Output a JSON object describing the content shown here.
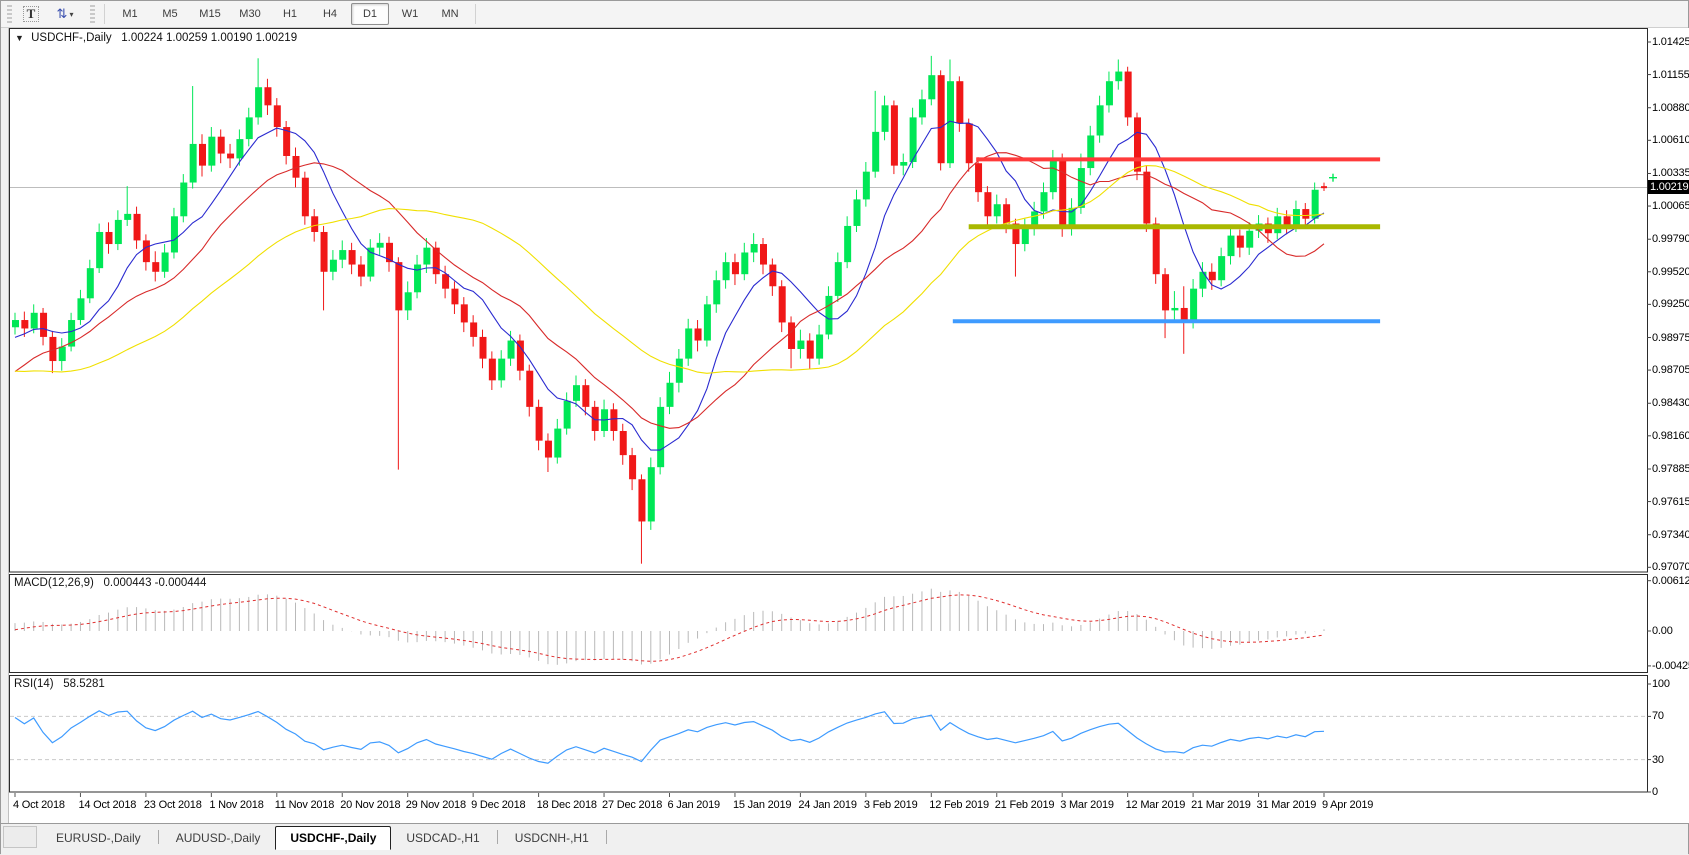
{
  "toolbar": {
    "text_tool_label": "T",
    "arrows_icon": "indicators-dropdown",
    "timeframes": [
      "M1",
      "M5",
      "M15",
      "M30",
      "H1",
      "H4",
      "D1",
      "W1",
      "MN"
    ],
    "active_timeframe": "D1"
  },
  "chart": {
    "title_symbol": "USDCHF-,Daily",
    "title_ohlc": "1.00224 1.00259 1.00190 1.00219",
    "current_price": "1.00219",
    "macd_label": "MACD(12,26,9)",
    "macd_values": "0.000443 -0.000444",
    "rsi_label": "RSI(14)",
    "rsi_value": "58.5281"
  },
  "axes": {
    "price_ticks": [
      "1.01425",
      "1.01155",
      "1.00880",
      "1.00610",
      "1.00335",
      "1.00065",
      "0.99790",
      "0.99520",
      "0.99250",
      "0.98975",
      "0.98705",
      "0.98430",
      "0.98160",
      "0.97885",
      "0.97615",
      "0.97340",
      "0.97070"
    ],
    "macd_ticks": [
      "0.006125",
      "0.00",
      "-0.00425"
    ],
    "rsi_ticks": [
      "100",
      "70",
      "30",
      "0"
    ],
    "dates": [
      "4 Oct 2018",
      "14 Oct 2018",
      "23 Oct 2018",
      "1 Nov 2018",
      "11 Nov 2018",
      "20 Nov 2018",
      "29 Nov 2018",
      "9 Dec 2018",
      "18 Dec 2018",
      "27 Dec 2018",
      "6 Jan 2019",
      "15 Jan 2019",
      "24 Jan 2019",
      "3 Feb 2019",
      "12 Feb 2019",
      "21 Feb 2019",
      "3 Mar 2019",
      "12 Mar 2019",
      "21 Mar 2019",
      "31 Mar 2019",
      "9 Apr 2019"
    ]
  },
  "tabs": {
    "items": [
      "EURUSD-,Daily",
      "AUDUSD-,Daily",
      "USDCHF-,Daily",
      "USDCAD-,H1",
      "USDCNH-,H1"
    ],
    "active": "USDCHF-,Daily"
  },
  "chart_data": {
    "type": "candlestick",
    "symbol": "USDCHF",
    "period": "Daily",
    "title": "USDCHF-,Daily",
    "ylim": [
      0.9707,
      1.01425
    ],
    "current_price": 1.00219,
    "bull_color": "#00E756",
    "bear_color": "#F01818",
    "current_price_line_color": "#BDBDBD",
    "label_every": 7,
    "warmup_closes": [
      0.9915,
      0.991,
      0.9905,
      0.99,
      0.9895,
      0.9898,
      0.989,
      0.9885,
      0.988,
      0.9875,
      0.987,
      0.9865,
      0.986,
      0.985,
      0.984,
      0.983,
      0.982,
      0.9815,
      0.9812,
      0.982,
      0.9828,
      0.9836,
      0.9845,
      0.9852,
      0.986,
      0.9868,
      0.9875,
      0.9882,
      0.9888,
      0.9893,
      0.9897,
      0.99,
      0.9903,
      0.9906
    ],
    "candles": [
      [
        0.9906,
        0.9918,
        0.99,
        0.9912
      ],
      [
        0.9912,
        0.9919,
        0.9898,
        0.9905
      ],
      [
        0.9905,
        0.9925,
        0.9901,
        0.9918
      ],
      [
        0.9918,
        0.9922,
        0.9891,
        0.9898
      ],
      [
        0.9898,
        0.9903,
        0.9868,
        0.9878
      ],
      [
        0.9878,
        0.9897,
        0.987,
        0.989
      ],
      [
        0.989,
        0.9918,
        0.9886,
        0.9912
      ],
      [
        0.9912,
        0.9937,
        0.9908,
        0.993
      ],
      [
        0.993,
        0.9962,
        0.9926,
        0.9955
      ],
      [
        0.9955,
        0.9992,
        0.9951,
        0.9985
      ],
      [
        0.9985,
        0.9993,
        0.9967,
        0.9975
      ],
      [
        0.9975,
        1.0003,
        0.997,
        0.9995
      ],
      [
        0.9995,
        1.0023,
        0.999,
        1.0
      ],
      [
        1.0,
        1.0006,
        0.9971,
        0.9978
      ],
      [
        0.9978,
        0.9983,
        0.9953,
        0.996
      ],
      [
        0.996,
        0.9969,
        0.9944,
        0.9952
      ],
      [
        0.9952,
        0.9975,
        0.9947,
        0.9968
      ],
      [
        0.9968,
        1.0005,
        0.9963,
        0.9998
      ],
      [
        0.9998,
        1.0033,
        0.9993,
        1.0026
      ],
      [
        1.0026,
        1.0106,
        1.0021,
        1.0058
      ],
      [
        1.0058,
        1.0066,
        1.0031,
        1.004
      ],
      [
        1.004,
        1.0072,
        1.0035,
        1.0064
      ],
      [
        1.0064,
        1.007,
        1.0042,
        1.005
      ],
      [
        1.005,
        1.0058,
        1.0038,
        1.0046
      ],
      [
        1.0046,
        1.007,
        1.004,
        1.0062
      ],
      [
        1.0062,
        1.0088,
        1.0056,
        1.008
      ],
      [
        1.008,
        1.0129,
        1.0074,
        1.0105
      ],
      [
        1.0105,
        1.0112,
        1.0082,
        1.009
      ],
      [
        1.009,
        1.0096,
        1.0064,
        1.0072
      ],
      [
        1.0072,
        1.0077,
        1.0041,
        1.0048
      ],
      [
        1.0048,
        1.0055,
        1.0022,
        1.003
      ],
      [
        1.003,
        1.0035,
        0.9991,
        0.9998
      ],
      [
        0.9998,
        1.0004,
        0.9977,
        0.9985
      ],
      [
        0.9985,
        0.999,
        0.992,
        0.9952
      ],
      [
        0.9952,
        0.997,
        0.9945,
        0.9962
      ],
      [
        0.9962,
        0.9978,
        0.9955,
        0.997
      ],
      [
        0.997,
        0.9976,
        0.995,
        0.9958
      ],
      [
        0.9958,
        0.9965,
        0.994,
        0.9948
      ],
      [
        0.9948,
        0.9979,
        0.9944,
        0.9972
      ],
      [
        0.9972,
        0.9984,
        0.9966,
        0.9976
      ],
      [
        0.9976,
        0.9981,
        0.9952,
        0.996
      ],
      [
        0.996,
        0.9964,
        0.9788,
        0.992
      ],
      [
        0.992,
        0.9944,
        0.9912,
        0.9935
      ],
      [
        0.9935,
        0.9966,
        0.993,
        0.9958
      ],
      [
        0.9958,
        0.998,
        0.9951,
        0.9972
      ],
      [
        0.9972,
        0.9977,
        0.9942,
        0.995
      ],
      [
        0.995,
        0.9957,
        0.993,
        0.9938
      ],
      [
        0.9938,
        0.9944,
        0.9917,
        0.9925
      ],
      [
        0.9925,
        0.9931,
        0.9902,
        0.991
      ],
      [
        0.991,
        0.9916,
        0.989,
        0.9898
      ],
      [
        0.9898,
        0.9904,
        0.9872,
        0.988
      ],
      [
        0.988,
        0.9886,
        0.9854,
        0.9862
      ],
      [
        0.9862,
        0.9887,
        0.9856,
        0.988
      ],
      [
        0.988,
        0.9903,
        0.9874,
        0.9895
      ],
      [
        0.9895,
        0.99,
        0.9862,
        0.987
      ],
      [
        0.987,
        0.9875,
        0.9832,
        0.984
      ],
      [
        0.984,
        0.9846,
        0.9804,
        0.9812
      ],
      [
        0.9812,
        0.9818,
        0.9786,
        0.9798
      ],
      [
        0.9798,
        0.983,
        0.9793,
        0.9822
      ],
      [
        0.9822,
        0.9852,
        0.9817,
        0.9845
      ],
      [
        0.9845,
        0.9866,
        0.984,
        0.9858
      ],
      [
        0.9858,
        0.9863,
        0.9833,
        0.984
      ],
      [
        0.984,
        0.9845,
        0.9812,
        0.982
      ],
      [
        0.982,
        0.9846,
        0.9815,
        0.9838
      ],
      [
        0.9838,
        0.9843,
        0.9812,
        0.982
      ],
      [
        0.982,
        0.9826,
        0.9792,
        0.98
      ],
      [
        0.98,
        0.9806,
        0.9771,
        0.978
      ],
      [
        0.978,
        0.9784,
        0.971,
        0.9745
      ],
      [
        0.9745,
        0.9798,
        0.9738,
        0.979
      ],
      [
        0.979,
        0.9848,
        0.9784,
        0.984
      ],
      [
        0.984,
        0.9869,
        0.9834,
        0.986
      ],
      [
        0.986,
        0.9888,
        0.9852,
        0.988
      ],
      [
        0.988,
        0.9913,
        0.9874,
        0.9905
      ],
      [
        0.9905,
        0.9912,
        0.9886,
        0.9895
      ],
      [
        0.9895,
        0.9932,
        0.989,
        0.9925
      ],
      [
        0.9925,
        0.9953,
        0.9918,
        0.9945
      ],
      [
        0.9945,
        0.9968,
        0.9938,
        0.996
      ],
      [
        0.996,
        0.9967,
        0.9941,
        0.995
      ],
      [
        0.995,
        0.9976,
        0.9945,
        0.9968
      ],
      [
        0.9968,
        0.9984,
        0.996,
        0.9975
      ],
      [
        0.9975,
        0.998,
        0.995,
        0.9958
      ],
      [
        0.9958,
        0.9963,
        0.9932,
        0.994
      ],
      [
        0.994,
        0.9945,
        0.9902,
        0.991
      ],
      [
        0.991,
        0.9915,
        0.9872,
        0.9888
      ],
      [
        0.9888,
        0.9904,
        0.988,
        0.9895
      ],
      [
        0.9895,
        0.9901,
        0.9871,
        0.988
      ],
      [
        0.988,
        0.9908,
        0.9875,
        0.99
      ],
      [
        0.99,
        0.994,
        0.9896,
        0.9932
      ],
      [
        0.9932,
        0.9968,
        0.9927,
        0.996
      ],
      [
        0.996,
        0.9998,
        0.9955,
        0.999
      ],
      [
        0.999,
        1.002,
        0.9985,
        1.0012
      ],
      [
        1.0012,
        1.0043,
        1.0006,
        1.0035
      ],
      [
        1.0035,
        1.0102,
        1.003,
        1.0068
      ],
      [
        1.0068,
        1.0098,
        1.0061,
        1.009
      ],
      [
        1.009,
        1.0094,
        1.0033,
        1.004
      ],
      [
        1.004,
        1.005,
        1.0032,
        1.0043
      ],
      [
        1.0043,
        1.0088,
        1.0038,
        1.008
      ],
      [
        1.008,
        1.0103,
        1.0074,
        1.0095
      ],
      [
        1.0095,
        1.0131,
        1.009,
        1.0115
      ],
      [
        1.0115,
        1.0119,
        1.0036,
        1.0042
      ],
      [
        1.0042,
        1.0128,
        1.0038,
        1.011
      ],
      [
        1.011,
        1.0114,
        1.0068,
        1.0075
      ],
      [
        1.0075,
        1.0079,
        1.0035,
        1.0042
      ],
      [
        1.0042,
        1.0047,
        1.001,
        1.0018
      ],
      [
        1.0018,
        1.0023,
        0.999,
        0.9998
      ],
      [
        0.9998,
        1.0016,
        0.9992,
        1.0008
      ],
      [
        1.0008,
        1.0013,
        0.9984,
        0.9992
      ],
      [
        0.9992,
        0.9996,
        0.9948,
        0.9975
      ],
      [
        0.9975,
        0.9996,
        0.9969,
        0.9988
      ],
      [
        0.9988,
        1.001,
        0.9982,
        1.0002
      ],
      [
        1.0002,
        1.0026,
        0.9996,
        1.0018
      ],
      [
        1.0018,
        1.0053,
        1.0012,
        1.0045
      ],
      [
        1.0045,
        1.005,
        0.9981,
        0.9988
      ],
      [
        0.9988,
        1.0013,
        0.9982,
        1.0005
      ],
      [
        1.0005,
        1.005,
        1.0,
        1.0038
      ],
      [
        1.0038,
        1.0073,
        1.0032,
        1.0065
      ],
      [
        1.0065,
        1.0098,
        1.0059,
        1.009
      ],
      [
        1.009,
        1.0118,
        1.0084,
        1.011
      ],
      [
        1.011,
        1.0128,
        1.0103,
        1.0118
      ],
      [
        1.0118,
        1.0122,
        1.0073,
        1.008
      ],
      [
        1.008,
        1.0084,
        1.0028,
        1.0035
      ],
      [
        1.0035,
        1.004,
        0.9985,
        0.9992
      ],
      [
        0.9992,
        0.9997,
        0.9942,
        0.995
      ],
      [
        0.995,
        0.9955,
        0.9897,
        0.992
      ],
      [
        0.992,
        0.9936,
        0.991,
        0.9922
      ],
      [
        0.9922,
        0.994,
        0.9884,
        0.991
      ],
      [
        0.991,
        0.9946,
        0.9905,
        0.9938
      ],
      [
        0.9938,
        0.996,
        0.9931,
        0.9952
      ],
      [
        0.9952,
        0.9959,
        0.9937,
        0.9945
      ],
      [
        0.9945,
        0.9972,
        0.994,
        0.9965
      ],
      [
        0.9965,
        0.9989,
        0.9958,
        0.9982
      ],
      [
        0.9982,
        0.9987,
        0.9964,
        0.9972
      ],
      [
        0.9972,
        0.9993,
        0.9966,
        0.9986
      ],
      [
        0.9986,
        0.9999,
        0.998,
        0.9992
      ],
      [
        0.9992,
        0.9997,
        0.9976,
        0.9984
      ],
      [
        0.9984,
        1.0005,
        0.9979,
        0.9998
      ],
      [
        0.9998,
        1.0003,
        0.9983,
        0.999
      ],
      [
        0.999,
        1.0011,
        0.9985,
        1.0004
      ],
      [
        1.0004,
        1.0009,
        0.9989,
        0.9996
      ],
      [
        0.9996,
        1.0026,
        0.9992,
        1.002
      ],
      [
        1.00224,
        1.00259,
        1.0019,
        1.00219
      ]
    ],
    "moving_averages": [
      {
        "name": "ma-fast",
        "period": 8,
        "color": "#2A2AD0"
      },
      {
        "name": "ma-mid",
        "period": 17,
        "color": "#D82A2A"
      },
      {
        "name": "ma-slow",
        "period": 34,
        "color": "#F0E000"
      }
    ],
    "macd": {
      "fast": 12,
      "slow": 26,
      "signal": 9,
      "hist_color": "#B9B9B9",
      "signal_color": "#E03030",
      "ticks": [
        0.006125,
        0,
        -0.00425
      ]
    },
    "rsi": {
      "period": 14,
      "color": "#3E9BFF",
      "levels": [
        70,
        30
      ],
      "level_color": "#C9C9C9",
      "ticks": [
        100,
        70,
        30,
        0
      ]
    },
    "levels": [
      {
        "name": "resistance-line",
        "price": 1.00452,
        "color": "#FF3B3B",
        "from_index": 102.8,
        "to_index": 146,
        "width": 4
      },
      {
        "name": "pivot-line",
        "price": 0.99893,
        "color": "#A9B800",
        "from_index": 102.0,
        "to_index": 146,
        "width": 5
      },
      {
        "name": "support-line",
        "price": 0.9911,
        "color": "#3E9BFF",
        "from_index": 100.3,
        "to_index": 146,
        "width": 4
      }
    ],
    "marker": {
      "name": "ask-marker",
      "price": 1.003,
      "color": "#00E756"
    }
  }
}
